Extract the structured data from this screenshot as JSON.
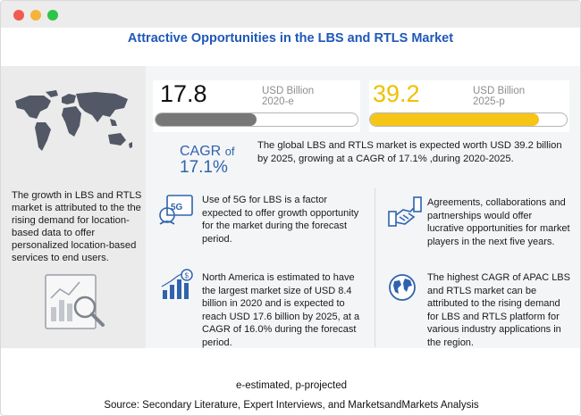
{
  "window": {
    "controls": [
      "close",
      "minimize",
      "maximize"
    ]
  },
  "title": "Attractive Opportunities in the LBS and RTLS Market",
  "left_panel": {
    "text": "The growth in LBS and RTLS market is attributed to the the rising demand for location-based data to offer personalized location-based services to end users.",
    "icons": [
      "world-map-icon",
      "analytics-report-icon"
    ]
  },
  "stats": {
    "left": {
      "value": "17.8",
      "unit_line1": "USD Billion",
      "unit_line2": "2020-e",
      "bar_fraction": 0.5,
      "bar_color": "#777777"
    },
    "right": {
      "value": "39.2",
      "unit_line1": "USD Billion",
      "unit_line2": "2025-p",
      "bar_fraction": 0.86,
      "bar_color": "#f5c518"
    }
  },
  "cagr": {
    "label": "CAGR",
    "of": "of",
    "value": "17.1%"
  },
  "summary": "The global LBS and RTLS market is expected worth USD 39.2 billion by 2025, growing at a CAGR of 17.1% ,during 2020-2025.",
  "insights": [
    {
      "icon": "5g-technology-icon",
      "text": "Use of 5G for LBS is a factor expected to offer growth opportunity for the market during the forecast period."
    },
    {
      "icon": "partnership-handshake-icon",
      "text": "Agreements, collaborations and partnerships would offer lucrative opportunities for market players in the next five years."
    },
    {
      "icon": "market-growth-chart-icon",
      "text": "North America is estimated to have the largest market size of USD 8.4 billion in 2020 and is expected to reach USD 17.6 billion by 2025, at a CAGR of 16.0% during the forecast period."
    },
    {
      "icon": "globe-icon",
      "text": "The highest CAGR of APAC LBS and RTLS market can be attributed to the rising demand for LBS and RTLS platform for various industry applications in the region."
    }
  ],
  "footer": {
    "note": "e-estimated, p-projected",
    "source": "Source: Secondary Literature, Expert Interviews, and MarketsandMarkets Analysis"
  },
  "colors": {
    "title": "#1f58b8",
    "cagr": "#2f63ad",
    "yellow": "#f5c518",
    "grey_bar": "#777777",
    "icon_blue": "#2f63ad"
  }
}
